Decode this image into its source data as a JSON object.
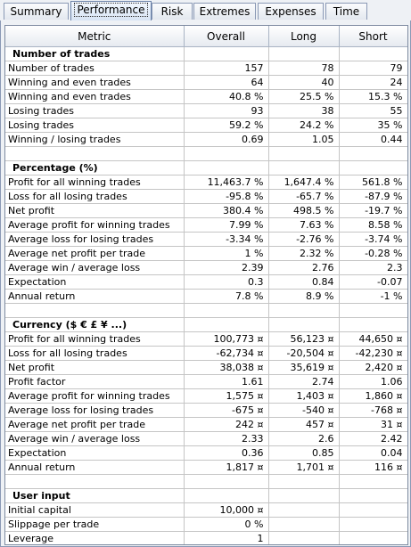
{
  "tabs": [
    "Summary",
    "Performance",
    "Risk",
    "Extremes",
    "Expenses",
    "Time"
  ],
  "active_tab": "Performance",
  "columns": [
    "Metric",
    "Overall",
    "Long",
    "Short"
  ],
  "rows": [
    {
      "t": "section",
      "label": "Number of trades"
    },
    {
      "t": "row",
      "label": "Number of trades",
      "v": [
        "157",
        "78",
        "79"
      ]
    },
    {
      "t": "row",
      "label": "Winning and even trades",
      "v": [
        "64",
        "40",
        "24"
      ]
    },
    {
      "t": "row",
      "label": "Winning and even trades",
      "v": [
        "40.8 %",
        "25.5 %",
        "15.3 %"
      ]
    },
    {
      "t": "row",
      "label": "Losing trades",
      "v": [
        "93",
        "38",
        "55"
      ]
    },
    {
      "t": "row",
      "label": "Losing trades",
      "v": [
        "59.2 %",
        "24.2 %",
        "35 %"
      ]
    },
    {
      "t": "row",
      "label": "Winning / losing trades",
      "v": [
        "0.69",
        "1.05",
        "0.44"
      ]
    },
    {
      "t": "blank"
    },
    {
      "t": "section",
      "label": "Percentage (%)"
    },
    {
      "t": "row",
      "label": "Profit for all winning trades",
      "v": [
        "11,463.7 %",
        "1,647.4 %",
        "561.8 %"
      ]
    },
    {
      "t": "row",
      "label": "Loss for all losing trades",
      "v": [
        "-95.8 %",
        "-65.7 %",
        "-87.9 %"
      ]
    },
    {
      "t": "row",
      "label": "Net profit",
      "v": [
        "380.4 %",
        "498.5 %",
        "-19.7 %"
      ]
    },
    {
      "t": "row",
      "label": "Average profit for winning trades",
      "v": [
        "7.99 %",
        "7.63 %",
        "8.58 %"
      ]
    },
    {
      "t": "row",
      "label": "Average loss for losing trades",
      "v": [
        "-3.34 %",
        "-2.76 %",
        "-3.74 %"
      ]
    },
    {
      "t": "row",
      "label": "Average net profit per trade",
      "v": [
        "1 %",
        "2.32 %",
        "-0.28 %"
      ]
    },
    {
      "t": "row",
      "label": "Average win / average loss",
      "v": [
        "2.39",
        "2.76",
        "2.3"
      ]
    },
    {
      "t": "row",
      "label": "Expectation",
      "v": [
        "0.3",
        "0.84",
        "-0.07"
      ]
    },
    {
      "t": "row",
      "label": "Annual return",
      "v": [
        "7.8 %",
        "8.9 %",
        "-1 %"
      ]
    },
    {
      "t": "blank"
    },
    {
      "t": "section",
      "label": "Currency ($ € £ ¥ ...)"
    },
    {
      "t": "row",
      "label": "Profit for all winning trades",
      "v": [
        "100,773 ¤",
        "56,123 ¤",
        "44,650 ¤"
      ]
    },
    {
      "t": "row",
      "label": "Loss for all losing trades",
      "v": [
        "-62,734 ¤",
        "-20,504 ¤",
        "-42,230 ¤"
      ]
    },
    {
      "t": "row",
      "label": "Net profit",
      "v": [
        "38,038 ¤",
        "35,619 ¤",
        "2,420 ¤"
      ]
    },
    {
      "t": "row",
      "label": "Profit factor",
      "v": [
        "1.61",
        "2.74",
        "1.06"
      ]
    },
    {
      "t": "row",
      "label": "Average profit for winning trades",
      "v": [
        "1,575 ¤",
        "1,403 ¤",
        "1,860 ¤"
      ]
    },
    {
      "t": "row",
      "label": "Average loss for losing trades",
      "v": [
        "-675 ¤",
        "-540 ¤",
        "-768 ¤"
      ]
    },
    {
      "t": "row",
      "label": "Average net profit per trade",
      "v": [
        "242 ¤",
        "457 ¤",
        "31 ¤"
      ]
    },
    {
      "t": "row",
      "label": "Average win / average loss",
      "v": [
        "2.33",
        "2.6",
        "2.42"
      ]
    },
    {
      "t": "row",
      "label": "Expectation",
      "v": [
        "0.36",
        "0.85",
        "0.04"
      ]
    },
    {
      "t": "row",
      "label": "Annual return",
      "v": [
        "1,817 ¤",
        "1,701 ¤",
        "116 ¤"
      ]
    },
    {
      "t": "blank"
    },
    {
      "t": "section",
      "label": "User input"
    },
    {
      "t": "row",
      "label": "Initial capital",
      "v": [
        "10,000 ¤",
        "",
        ""
      ]
    },
    {
      "t": "row",
      "label": "Slippage per trade",
      "v": [
        "0 %",
        "",
        ""
      ]
    },
    {
      "t": "row",
      "label": "Leverage",
      "v": [
        "1",
        "",
        ""
      ]
    }
  ]
}
